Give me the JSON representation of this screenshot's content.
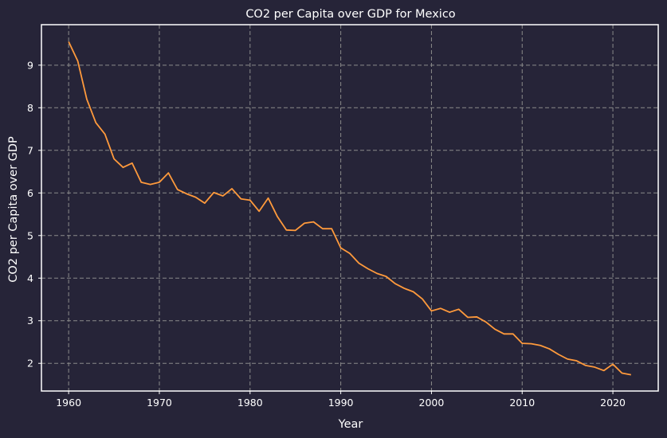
{
  "chart_data": {
    "type": "line",
    "title": "CO2 per Capita over GDP for Mexico",
    "xlabel": "Year",
    "ylabel": "CO2 per Capita over GDP",
    "xlim": [
      1957,
      2025
    ],
    "ylim": [
      1.35,
      9.95
    ],
    "xticks": [
      1960,
      1970,
      1980,
      1990,
      2000,
      2010,
      2020
    ],
    "yticks": [
      2,
      3,
      4,
      5,
      6,
      7,
      8,
      9
    ],
    "grid": true,
    "colors": {
      "background": "#262438",
      "line": "#ff9a3c",
      "grid": "#8a8a8a",
      "axes": "#ffffff"
    },
    "series": [
      {
        "x": [
          1960,
          1961,
          1962,
          1963,
          1964,
          1965,
          1966,
          1967,
          1968,
          1969,
          1970,
          1971,
          1972,
          1973,
          1974,
          1975,
          1976,
          1977,
          1978,
          1979,
          1980,
          1981,
          1982,
          1983,
          1984,
          1985,
          1986,
          1987,
          1988,
          1989,
          1990,
          1991,
          1992,
          1993,
          1994,
          1995,
          1996,
          1997,
          1998,
          1999,
          2000,
          2001,
          2002,
          2003,
          2004,
          2005,
          2006,
          2007,
          2008,
          2009,
          2010,
          2011,
          2012,
          2013,
          2014,
          2015,
          2016,
          2017,
          2018,
          2019,
          2020,
          2021,
          2022
        ],
        "values": [
          9.55,
          9.1,
          8.2,
          7.65,
          7.38,
          6.8,
          6.6,
          6.7,
          6.25,
          6.2,
          6.25,
          6.47,
          6.08,
          5.98,
          5.9,
          5.76,
          6.01,
          5.93,
          6.1,
          5.86,
          5.83,
          5.57,
          5.88,
          5.45,
          5.13,
          5.12,
          5.29,
          5.32,
          5.16,
          5.16,
          4.71,
          4.58,
          4.35,
          4.22,
          4.11,
          4.04,
          3.87,
          3.76,
          3.68,
          3.51,
          3.23,
          3.29,
          3.2,
          3.27,
          3.08,
          3.09,
          2.97,
          2.8,
          2.69,
          2.69,
          2.47,
          2.46,
          2.42,
          2.34,
          2.21,
          2.1,
          2.06,
          1.95,
          1.91,
          1.83,
          1.98,
          1.77,
          1.73
        ]
      }
    ]
  }
}
